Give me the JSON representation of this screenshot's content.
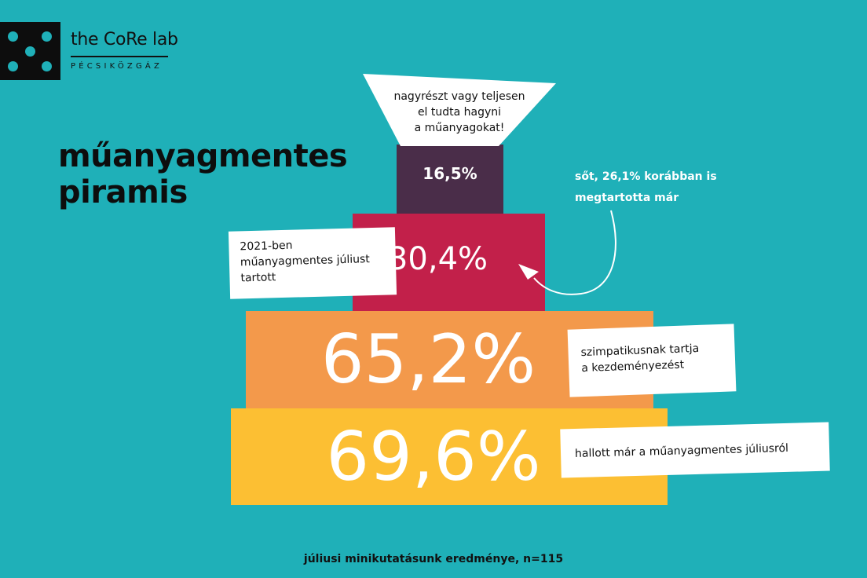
{
  "brand": {
    "name": "the CoRe lab",
    "subtitle": "PÉCSIKÖZGÁZ"
  },
  "title_lines": [
    "műanyagmentes",
    "piramis"
  ],
  "footer": "júliusi minikutatásunk eredménye, n=115",
  "note_lines": [
    "sőt, 26,1% korábban is",
    "megtartotta már"
  ],
  "colors": {
    "background": "#1fb0b8",
    "tier1": "#4a2d49",
    "tier2": "#c2204a",
    "tier3": "#f3994b",
    "tier4": "#fcbf33"
  },
  "chart_data": {
    "type": "bar",
    "orientation": "pyramid",
    "categories": [
      "nagyrészt vagy teljesen el tudta hagyni a műanyagokat!",
      "2021-ben műanyagmentes júliust tartott",
      "szimpatikusnak tartja a kezdeményezést",
      "hallott már a műanyagmentes júliusról"
    ],
    "values": [
      16.5,
      30.4,
      65.2,
      69.6
    ],
    "value_labels": [
      "16,5%",
      "30,4%",
      "65,2%",
      "69,6%"
    ],
    "unit": "%",
    "annotation": "sőt, 26,1% korábban is megtartotta már"
  },
  "callouts": {
    "tier1_lines": [
      "nagyrészt vagy teljesen",
      "el tudta hagyni",
      "a műanyagokat!"
    ],
    "tier2_lines": [
      "2021-ben",
      "műanyagmentes júliust",
      "tartott"
    ],
    "tier3_lines": [
      "szimpatikusnak tartja",
      "a kezdeményezést"
    ],
    "tier4_lines": [
      "hallott már a műanyagmentes júliusról"
    ]
  }
}
